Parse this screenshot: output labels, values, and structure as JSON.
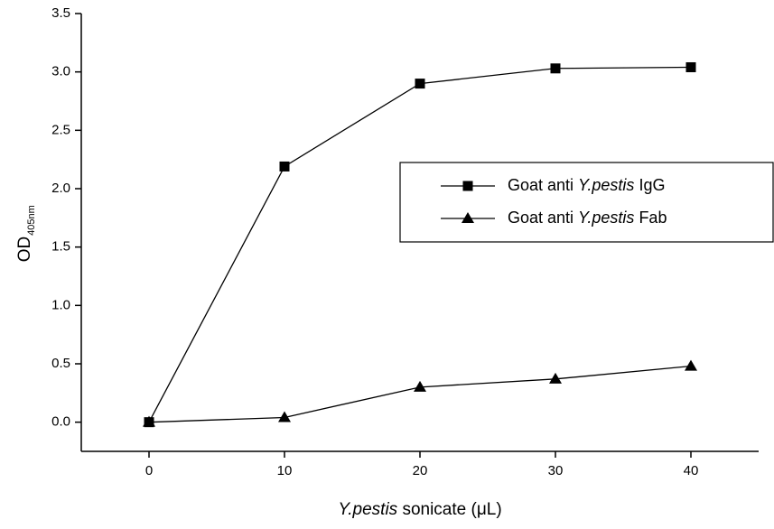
{
  "chart_data": {
    "type": "line",
    "x_label": "Y.pestis sonicate (μL)",
    "y_label": "OD",
    "y_label_subscript": "405nm",
    "x": [
      0,
      10,
      20,
      30,
      40
    ],
    "series": [
      {
        "name": "Goat anti Y.pestis IgG",
        "color": "#000000",
        "marker": "square",
        "values": [
          0,
          2.19,
          2.9,
          3.03,
          3.04
        ]
      },
      {
        "name": "Goat anti Y.pestis Fab",
        "color": "#000000",
        "marker": "triangle",
        "values": [
          0,
          0.04,
          0.3,
          0.37,
          0.48
        ]
      }
    ],
    "xlim": [
      -5,
      45
    ],
    "xticks": [
      0,
      10,
      20,
      30,
      40
    ],
    "ylim": [
      -0.25,
      3.5
    ],
    "yticks": [
      {
        "value": 0,
        "label": "0.0"
      },
      0.5,
      {
        "value": 1,
        "label": "1.0"
      },
      1.5,
      {
        "value": 2,
        "label": "2.0"
      },
      2.5,
      {
        "value": 3,
        "label": "3.0"
      },
      3.5
    ],
    "legend": "right",
    "grid": false
  }
}
